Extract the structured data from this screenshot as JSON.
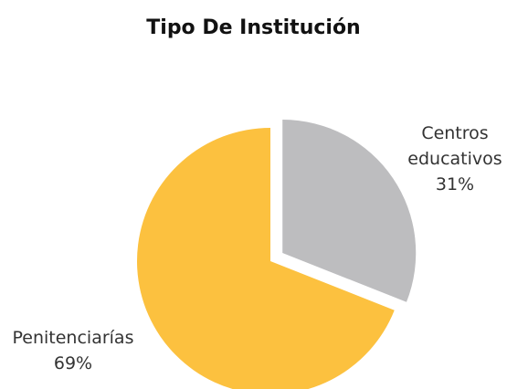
{
  "chart_data": {
    "type": "pie",
    "title": "Tipo De Institución",
    "categories": [
      "Centros educativos",
      "Penitenciarías"
    ],
    "values": [
      31,
      69
    ],
    "value_labels": [
      "31%",
      "69%"
    ],
    "colors": [
      "#bdbdbf",
      "#fcc13f"
    ],
    "exploded": [
      true,
      false
    ]
  }
}
